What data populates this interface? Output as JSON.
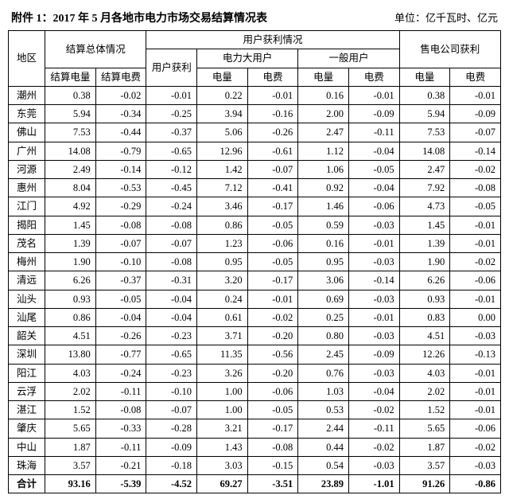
{
  "title": "附件 1：2017 年 5 月各地市电力市场交易结算情况表",
  "unit": "单位：亿千瓦时、亿元",
  "headers": {
    "region": "地区",
    "settle_group": "结算总体情况",
    "settle_q": "结算电量",
    "settle_fee": "结算电费",
    "user_group": "用户获利情况",
    "user_profit": "用户获利",
    "big_user": "电力大用户",
    "normal_user": "一般用户",
    "q": "电量",
    "fee": "电费",
    "sales_group": "售电公司获利"
  },
  "rows": [
    {
      "region": "潮州",
      "sq": "0.38",
      "sf": "-0.02",
      "up": "-0.01",
      "bq": "0.22",
      "bf": "-0.01",
      "nq": "0.16",
      "nf": "-0.01",
      "cq": "0.38",
      "cf": "-0.01"
    },
    {
      "region": "东莞",
      "sq": "5.94",
      "sf": "-0.34",
      "up": "-0.25",
      "bq": "3.94",
      "bf": "-0.16",
      "nq": "2.00",
      "nf": "-0.09",
      "cq": "5.94",
      "cf": "-0.09"
    },
    {
      "region": "佛山",
      "sq": "7.53",
      "sf": "-0.44",
      "up": "-0.37",
      "bq": "5.06",
      "bf": "-0.26",
      "nq": "2.47",
      "nf": "-0.11",
      "cq": "7.53",
      "cf": "-0.07"
    },
    {
      "region": "广州",
      "sq": "14.08",
      "sf": "-0.79",
      "up": "-0.65",
      "bq": "12.96",
      "bf": "-0.61",
      "nq": "1.12",
      "nf": "-0.04",
      "cq": "14.08",
      "cf": "-0.14"
    },
    {
      "region": "河源",
      "sq": "2.49",
      "sf": "-0.14",
      "up": "-0.12",
      "bq": "1.42",
      "bf": "-0.07",
      "nq": "1.06",
      "nf": "-0.05",
      "cq": "2.47",
      "cf": "-0.02"
    },
    {
      "region": "惠州",
      "sq": "8.04",
      "sf": "-0.53",
      "up": "-0.45",
      "bq": "7.12",
      "bf": "-0.41",
      "nq": "0.92",
      "nf": "-0.04",
      "cq": "7.92",
      "cf": "-0.08"
    },
    {
      "region": "江门",
      "sq": "4.92",
      "sf": "-0.29",
      "up": "-0.24",
      "bq": "3.46",
      "bf": "-0.17",
      "nq": "1.46",
      "nf": "-0.06",
      "cq": "4.73",
      "cf": "-0.05"
    },
    {
      "region": "揭阳",
      "sq": "1.45",
      "sf": "-0.08",
      "up": "-0.08",
      "bq": "0.86",
      "bf": "-0.05",
      "nq": "0.59",
      "nf": "-0.03",
      "cq": "1.45",
      "cf": "-0.01"
    },
    {
      "region": "茂名",
      "sq": "1.39",
      "sf": "-0.07",
      "up": "-0.07",
      "bq": "1.23",
      "bf": "-0.06",
      "nq": "0.16",
      "nf": "-0.01",
      "cq": "1.39",
      "cf": "-0.01"
    },
    {
      "region": "梅州",
      "sq": "1.90",
      "sf": "-0.10",
      "up": "-0.08",
      "bq": "0.95",
      "bf": "-0.05",
      "nq": "0.95",
      "nf": "-0.03",
      "cq": "1.90",
      "cf": "-0.02"
    },
    {
      "region": "清远",
      "sq": "6.26",
      "sf": "-0.37",
      "up": "-0.31",
      "bq": "3.20",
      "bf": "-0.17",
      "nq": "3.06",
      "nf": "-0.14",
      "cq": "6.26",
      "cf": "-0.06"
    },
    {
      "region": "汕头",
      "sq": "0.93",
      "sf": "-0.05",
      "up": "-0.04",
      "bq": "0.24",
      "bf": "-0.01",
      "nq": "0.69",
      "nf": "-0.03",
      "cq": "0.93",
      "cf": "-0.01"
    },
    {
      "region": "汕尾",
      "sq": "0.86",
      "sf": "-0.04",
      "up": "-0.04",
      "bq": "0.61",
      "bf": "-0.02",
      "nq": "0.25",
      "nf": "-0.01",
      "cq": "0.83",
      "cf": "0.00"
    },
    {
      "region": "韶关",
      "sq": "4.51",
      "sf": "-0.26",
      "up": "-0.23",
      "bq": "3.71",
      "bf": "-0.20",
      "nq": "0.80",
      "nf": "-0.03",
      "cq": "4.51",
      "cf": "-0.03"
    },
    {
      "region": "深圳",
      "sq": "13.80",
      "sf": "-0.77",
      "up": "-0.65",
      "bq": "11.35",
      "bf": "-0.56",
      "nq": "2.45",
      "nf": "-0.09",
      "cq": "12.26",
      "cf": "-0.13"
    },
    {
      "region": "阳江",
      "sq": "4.03",
      "sf": "-0.24",
      "up": "-0.23",
      "bq": "3.26",
      "bf": "-0.20",
      "nq": "0.76",
      "nf": "-0.03",
      "cq": "4.03",
      "cf": "-0.01"
    },
    {
      "region": "云浮",
      "sq": "2.02",
      "sf": "-0.11",
      "up": "-0.10",
      "bq": "1.00",
      "bf": "-0.06",
      "nq": "1.03",
      "nf": "-0.04",
      "cq": "2.02",
      "cf": "-0.01"
    },
    {
      "region": "湛江",
      "sq": "1.52",
      "sf": "-0.08",
      "up": "-0.07",
      "bq": "1.00",
      "bf": "-0.05",
      "nq": "0.53",
      "nf": "-0.02",
      "cq": "1.52",
      "cf": "-0.01"
    },
    {
      "region": "肇庆",
      "sq": "5.65",
      "sf": "-0.33",
      "up": "-0.28",
      "bq": "3.21",
      "bf": "-0.17",
      "nq": "2.44",
      "nf": "-0.11",
      "cq": "5.65",
      "cf": "-0.06"
    },
    {
      "region": "中山",
      "sq": "1.87",
      "sf": "-0.11",
      "up": "-0.09",
      "bq": "1.43",
      "bf": "-0.08",
      "nq": "0.44",
      "nf": "-0.02",
      "cq": "1.87",
      "cf": "-0.02"
    },
    {
      "region": "珠海",
      "sq": "3.57",
      "sf": "-0.21",
      "up": "-0.18",
      "bq": "3.03",
      "bf": "-0.15",
      "nq": "0.54",
      "nf": "-0.03",
      "cq": "3.57",
      "cf": "-0.03"
    }
  ],
  "total": {
    "region": "合计",
    "sq": "93.16",
    "sf": "-5.39",
    "up": "-4.52",
    "bq": "69.27",
    "bf": "-3.51",
    "nq": "23.89",
    "nf": "-1.01",
    "cq": "91.26",
    "cf": "-0.86"
  }
}
